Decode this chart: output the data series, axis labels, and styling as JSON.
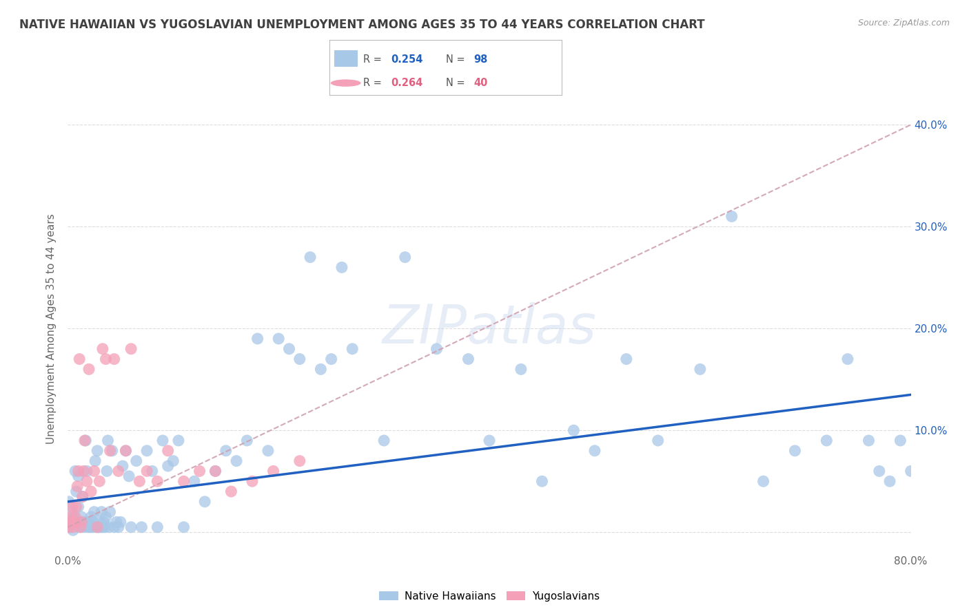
{
  "title": "NATIVE HAWAIIAN VS YUGOSLAVIAN UNEMPLOYMENT AMONG AGES 35 TO 44 YEARS CORRELATION CHART",
  "source": "Source: ZipAtlas.com",
  "ylabel": "Unemployment Among Ages 35 to 44 years",
  "xmin": 0.0,
  "xmax": 0.8,
  "ymin": -0.02,
  "ymax": 0.42,
  "xticks": [
    0.0,
    0.1,
    0.2,
    0.3,
    0.4,
    0.5,
    0.6,
    0.7,
    0.8
  ],
  "xticklabels": [
    "0.0%",
    "",
    "",
    "",
    "",
    "",
    "",
    "",
    "80.0%"
  ],
  "yticks": [
    0.0,
    0.1,
    0.2,
    0.3,
    0.4
  ],
  "yticklabels": [
    "",
    "10.0%",
    "20.0%",
    "30.0%",
    "40.0%"
  ],
  "watermark": "ZIPatlas",
  "blue_color": "#a8c8e8",
  "pink_color": "#f4a0b8",
  "trendline_blue_color": "#2060c0",
  "trendline_pink_color": "#e06080",
  "grid_color": "#dddddd",
  "background_color": "#ffffff",
  "title_color": "#404040",
  "axis_label_color": "#666666",
  "tick_label_color_right": "#2060c0",
  "legend_R1": "0.254",
  "legend_N1": "98",
  "legend_R2": "0.264",
  "legend_N2": "40",
  "native_hawaiian_x": [
    0.001,
    0.002,
    0.003,
    0.004,
    0.005,
    0.006,
    0.007,
    0.008,
    0.009,
    0.01,
    0.01,
    0.011,
    0.012,
    0.013,
    0.014,
    0.015,
    0.016,
    0.017,
    0.018,
    0.019,
    0.02,
    0.021,
    0.022,
    0.023,
    0.024,
    0.025,
    0.026,
    0.027,
    0.028,
    0.029,
    0.03,
    0.031,
    0.032,
    0.033,
    0.034,
    0.035,
    0.036,
    0.037,
    0.038,
    0.039,
    0.04,
    0.042,
    0.044,
    0.046,
    0.048,
    0.05,
    0.052,
    0.055,
    0.058,
    0.06,
    0.065,
    0.07,
    0.075,
    0.08,
    0.085,
    0.09,
    0.095,
    0.1,
    0.105,
    0.11,
    0.12,
    0.13,
    0.14,
    0.15,
    0.16,
    0.17,
    0.18,
    0.19,
    0.2,
    0.21,
    0.22,
    0.23,
    0.24,
    0.25,
    0.26,
    0.27,
    0.3,
    0.32,
    0.35,
    0.38,
    0.4,
    0.43,
    0.45,
    0.48,
    0.5,
    0.53,
    0.56,
    0.6,
    0.63,
    0.66,
    0.69,
    0.72,
    0.74,
    0.76,
    0.77,
    0.78,
    0.79,
    0.8
  ],
  "native_hawaiian_y": [
    0.03,
    0.005,
    0.008,
    0.02,
    0.002,
    0.015,
    0.06,
    0.04,
    0.01,
    0.025,
    0.055,
    0.005,
    0.01,
    0.015,
    0.035,
    0.005,
    0.01,
    0.09,
    0.06,
    0.005,
    0.01,
    0.005,
    0.015,
    0.005,
    0.01,
    0.02,
    0.07,
    0.005,
    0.08,
    0.005,
    0.01,
    0.005,
    0.02,
    0.005,
    0.01,
    0.005,
    0.015,
    0.06,
    0.09,
    0.005,
    0.02,
    0.08,
    0.005,
    0.01,
    0.005,
    0.01,
    0.065,
    0.08,
    0.055,
    0.005,
    0.07,
    0.005,
    0.08,
    0.06,
    0.005,
    0.09,
    0.065,
    0.07,
    0.09,
    0.005,
    0.05,
    0.03,
    0.06,
    0.08,
    0.07,
    0.09,
    0.19,
    0.08,
    0.19,
    0.18,
    0.17,
    0.27,
    0.16,
    0.17,
    0.26,
    0.18,
    0.09,
    0.27,
    0.18,
    0.17,
    0.09,
    0.16,
    0.05,
    0.1,
    0.08,
    0.17,
    0.09,
    0.16,
    0.31,
    0.05,
    0.08,
    0.09,
    0.17,
    0.09,
    0.06,
    0.05,
    0.09,
    0.06
  ],
  "yugoslavian_x": [
    0.001,
    0.002,
    0.003,
    0.004,
    0.005,
    0.006,
    0.007,
    0.008,
    0.009,
    0.01,
    0.011,
    0.012,
    0.013,
    0.014,
    0.015,
    0.016,
    0.018,
    0.02,
    0.022,
    0.025,
    0.028,
    0.03,
    0.033,
    0.036,
    0.04,
    0.044,
    0.048,
    0.055,
    0.06,
    0.068,
    0.075,
    0.085,
    0.095,
    0.11,
    0.125,
    0.14,
    0.155,
    0.175,
    0.195,
    0.22
  ],
  "yugoslavian_y": [
    0.005,
    0.01,
    0.015,
    0.025,
    0.005,
    0.01,
    0.015,
    0.025,
    0.045,
    0.06,
    0.17,
    0.005,
    0.01,
    0.035,
    0.06,
    0.09,
    0.05,
    0.16,
    0.04,
    0.06,
    0.005,
    0.05,
    0.18,
    0.17,
    0.08,
    0.17,
    0.06,
    0.08,
    0.18,
    0.05,
    0.06,
    0.05,
    0.08,
    0.05,
    0.06,
    0.06,
    0.04,
    0.05,
    0.06,
    0.07
  ]
}
